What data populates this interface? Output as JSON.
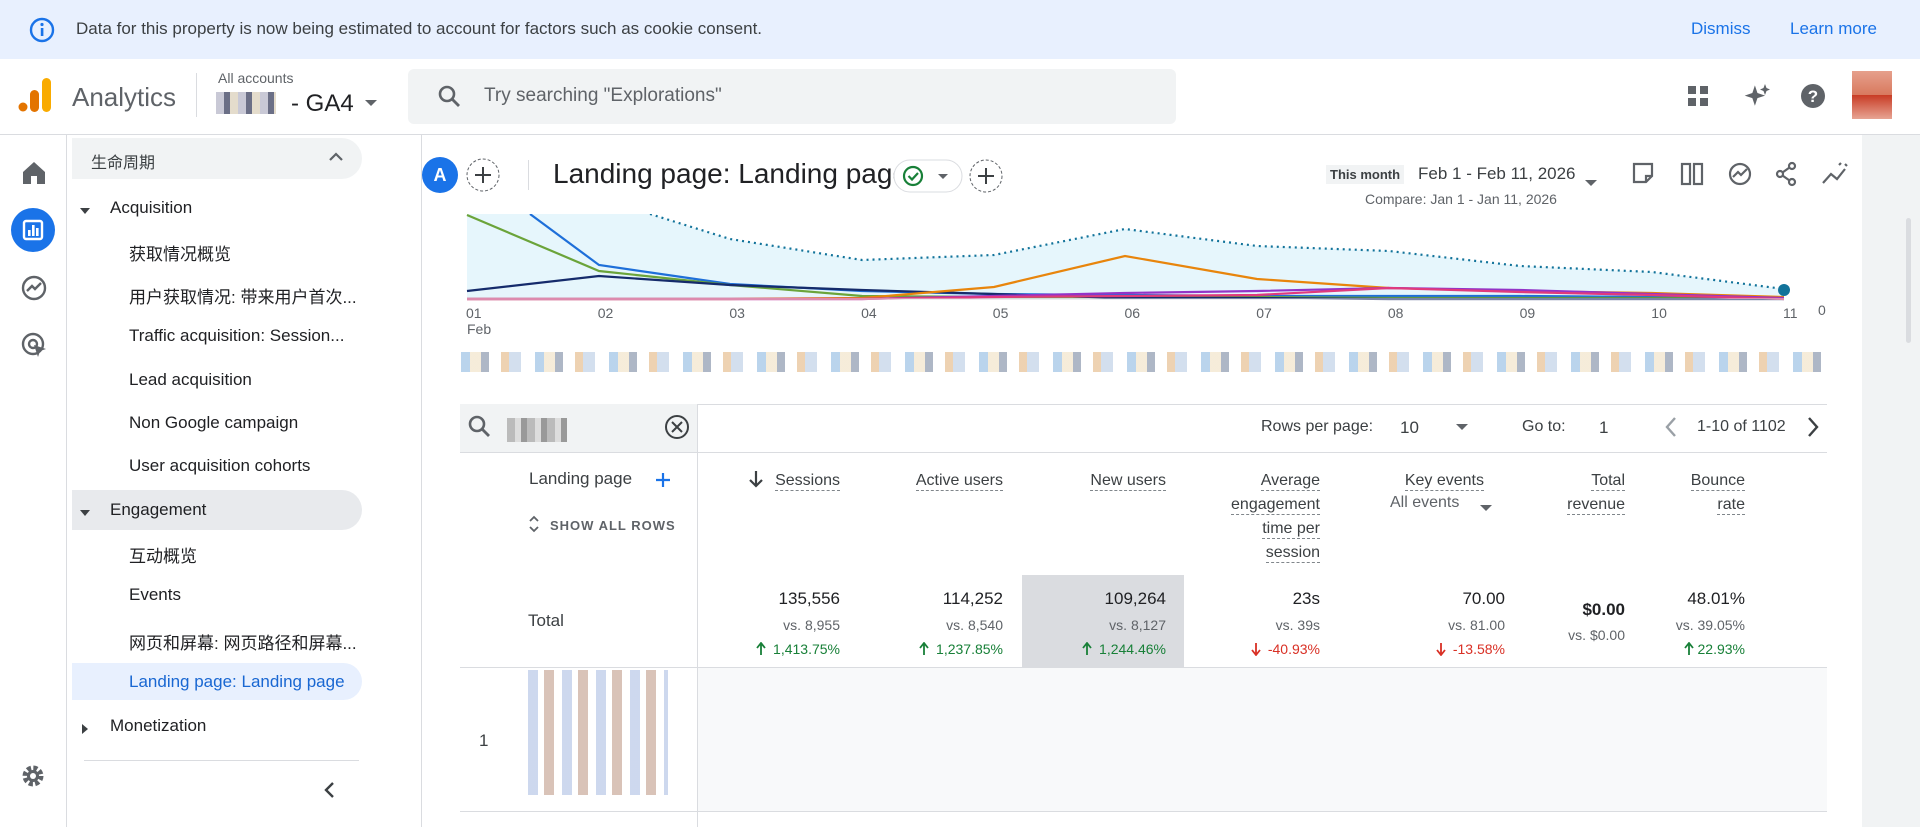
{
  "banner": {
    "message": "Data for this property is now being estimated to account for factors such as cookie consent.",
    "actions": [
      "Dismiss",
      "Learn more"
    ]
  },
  "header": {
    "product": "Analytics",
    "account_path": "All accounts",
    "property": "- GA4",
    "search_placeholder": "Try searching \"Explorations\""
  },
  "nav": {
    "section": "生命周期",
    "groups": [
      {
        "title": "Acquisition",
        "items": [
          {
            "label": "获取情况概览"
          },
          {
            "label": "用户获取情况: 带来用户首次..."
          },
          {
            "label": "Traffic acquisition: Session..."
          },
          {
            "label": "Lead acquisition"
          },
          {
            "label": "Non Google campaign"
          },
          {
            "label": "User acquisition cohorts"
          }
        ]
      },
      {
        "title": "Engagement",
        "highlighted": true,
        "items": [
          {
            "label": "互动概览"
          },
          {
            "label": "Events"
          },
          {
            "label": "网页和屏幕: 网页路径和屏幕..."
          },
          {
            "label": "Landing page: Landing page",
            "selected": true
          }
        ]
      },
      {
        "title": "Monetization",
        "items": []
      }
    ]
  },
  "content": {
    "avatar": "A",
    "title": "Landing page: Landing page",
    "date_label": "This month",
    "date_range": "Feb 1 - Feb 11, 2026",
    "compare": "Compare: Jan 1 - Jan 11, 2026"
  },
  "chart": {
    "x_labels": [
      "01",
      "02",
      "03",
      "04",
      "05",
      "06",
      "07",
      "08",
      "09",
      "10",
      "11"
    ],
    "x_sublabel": "Feb",
    "y_label": "0"
  },
  "table": {
    "rows_per_page_label": "Rows per page:",
    "rows_per_page": "10",
    "goto_label": "Go to:",
    "goto": "1",
    "pagination": "1-10 of 1102",
    "dimension": "Landing page",
    "show_all": "SHOW ALL ROWS",
    "columns": [
      {
        "name": "Sessions",
        "sorted": true
      },
      {
        "name": "Active users"
      },
      {
        "name": "New users",
        "highlighted": true
      },
      {
        "name": "Average engagement time per session"
      },
      {
        "name": "Key events",
        "sub": "All events"
      },
      {
        "name": "Total revenue"
      },
      {
        "name": "Bounce rate"
      }
    ],
    "total": {
      "label": "Total",
      "cells": [
        {
          "value": "135,556",
          "compare": "vs. 8,955",
          "change": "1,413.75%",
          "direction": "up"
        },
        {
          "value": "114,252",
          "compare": "vs. 8,540",
          "change": "1,237.85%",
          "direction": "up"
        },
        {
          "value": "109,264",
          "compare": "vs. 8,127",
          "change": "1,244.46%",
          "direction": "up"
        },
        {
          "value": "23s",
          "compare": "vs. 39s",
          "change": "-40.93%",
          "direction": "down"
        },
        {
          "value": "70.00",
          "compare": "vs. 81.00",
          "change": "-13.58%",
          "direction": "down"
        },
        {
          "value": "$0.00",
          "compare": "vs. $0.00"
        },
        {
          "value": "48.01%",
          "compare": "vs. 39.05%",
          "change": "22.93%",
          "direction": "up"
        }
      ]
    },
    "rows": [
      {
        "index": "1"
      }
    ]
  }
}
